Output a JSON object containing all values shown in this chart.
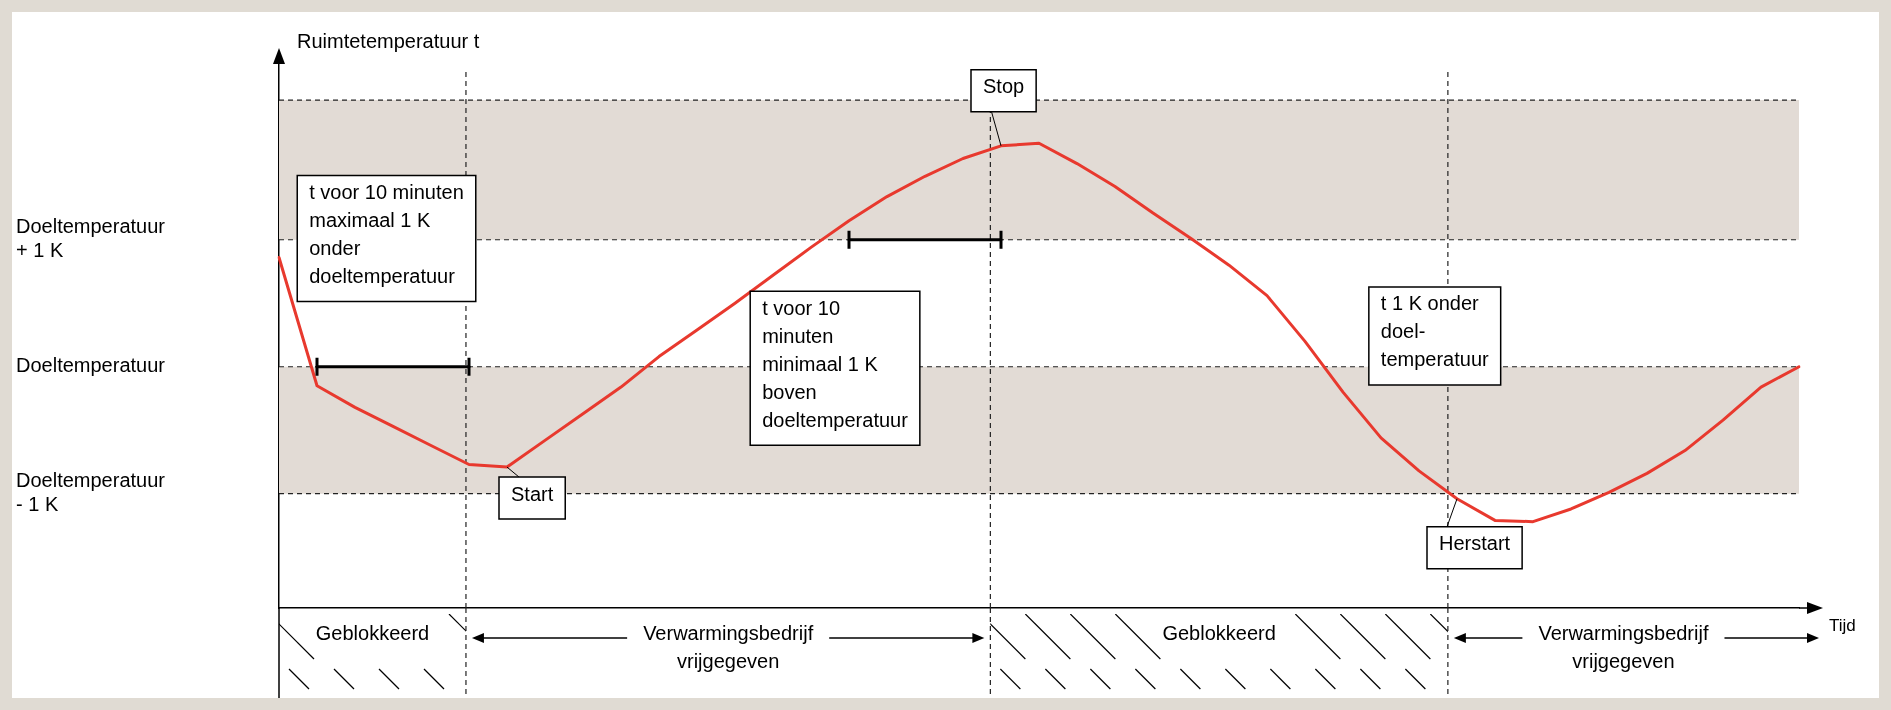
{
  "chart_data": {
    "type": "line",
    "ylabel": "Ruimtetemperatuur t",
    "xlabel": "Tijd",
    "categories": [
      null,
      null,
      null,
      null,
      null,
      null,
      null,
      null,
      null,
      null,
      null,
      null,
      null,
      null,
      null,
      null,
      null,
      null,
      null,
      null,
      null,
      null,
      null,
      null,
      null,
      null,
      null,
      null,
      null,
      null,
      null,
      null,
      null,
      null,
      null,
      null,
      null,
      null,
      null,
      null,
      null
    ],
    "ylim": [
      -1.9,
      2.4
    ],
    "yticks": [
      {
        "value": -1,
        "label": "Doeltemperatuur\n- 1 K"
      },
      {
        "value": 0,
        "label": "Doeltemperatuur"
      },
      {
        "value": 1,
        "label": "Doeltemperatuur\n+ 1 K"
      }
    ],
    "tick_labels": "y",
    "grid": false,
    "legend": false,
    "marker": "none",
    "line_style": "solid",
    "series": [
      {
        "color": "#e8392e",
        "values": [
          0.86,
          -0.15,
          -0.32,
          -0.47,
          -0.62,
          -0.77,
          -0.79,
          -0.58,
          -0.37,
          -0.16,
          0.08,
          0.29,
          0.5,
          0.72,
          0.94,
          1.15,
          1.34,
          1.5,
          1.64,
          1.74,
          1.76,
          1.6,
          1.42,
          1.21,
          1.01,
          0.8,
          0.56,
          0.2,
          -0.2,
          -0.56,
          -0.82,
          -1.04,
          -1.21,
          -1.22,
          -1.12,
          -0.99,
          -0.84,
          -0.66,
          -0.42,
          -0.16,
          0.0
        ]
      },
      {
        "color": "#000000",
        "values": [
          null,
          0,
          0,
          0,
          0,
          0,
          null,
          null,
          null,
          null,
          null,
          null,
          null,
          null,
          null,
          null,
          null,
          null,
          null,
          null,
          null,
          null,
          null,
          null,
          null,
          null,
          null,
          null,
          null,
          null,
          null,
          null,
          null,
          null,
          null,
          null,
          null,
          null,
          null,
          null,
          null
        ]
      },
      {
        "color": "#000000",
        "values": [
          null,
          null,
          null,
          null,
          null,
          null,
          null,
          null,
          null,
          null,
          null,
          null,
          null,
          null,
          null,
          1,
          1,
          1,
          1,
          1,
          null,
          null,
          null,
          null,
          null,
          null,
          null,
          null,
          null,
          null,
          null,
          null,
          null,
          null,
          null,
          null,
          null,
          null,
          null,
          null,
          null
        ]
      }
    ],
    "bands": [
      {
        "axis": "y",
        "from": -1,
        "to": 0,
        "color": "#e2dbd5"
      },
      {
        "axis": "y",
        "from": 1,
        "to": 2.1,
        "color": "#e2dbd5"
      }
    ],
    "ref_lines": [
      {
        "axis": "y",
        "value": -1,
        "line_style": "dashed"
      },
      {
        "axis": "y",
        "value": 0,
        "line_style": "dashed"
      },
      {
        "axis": "y",
        "value": 1,
        "line_style": "dashed"
      },
      {
        "axis": "y",
        "value": 2.1,
        "line_style": "dashed"
      }
    ],
    "annotations": [
      "t voor 10 minuten\nmaximaal 1 K\nonder\ndoeltemperatuur",
      "Start",
      "Stop",
      "t voor 10\nminuten\nminimaal 1 K\nboven\ndoeltemperatuur",
      "t 1 K onder\ndoel-\ntemperatuur",
      "Herstart",
      "Geblokkeerd",
      "Verwarmingsbedrijf\nvrijgegeven",
      "Geblokkeerd",
      "Verwarmingsbedrijf\nvrijgegeven"
    ]
  }
}
